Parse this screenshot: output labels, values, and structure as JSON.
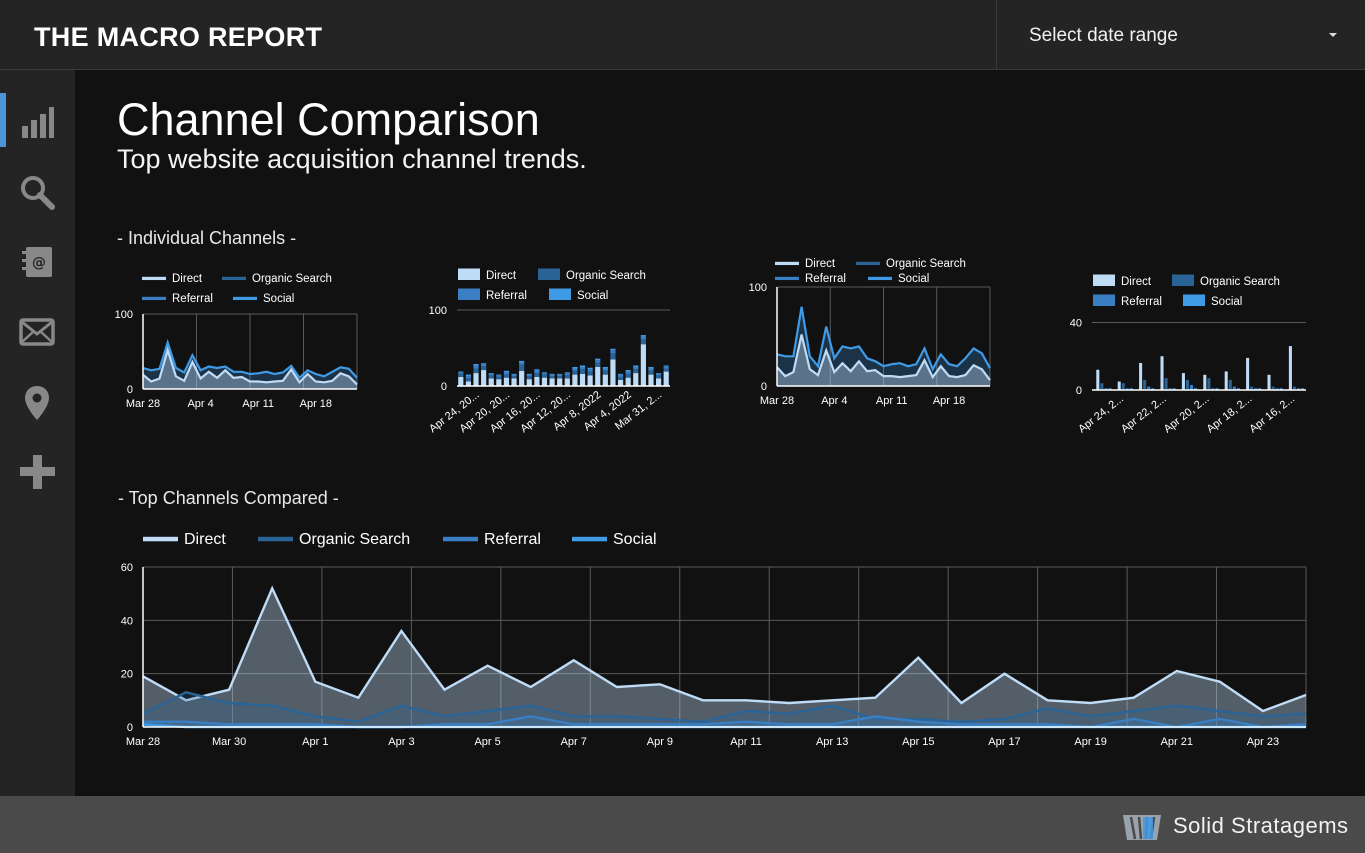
{
  "app": {
    "brand": "THE MACRO REPORT"
  },
  "date_selector": {
    "label": "Select date range"
  },
  "sidebar": {
    "items": [
      {
        "icon": "bar-chart-icon",
        "active": true
      },
      {
        "icon": "search-icon",
        "active": false
      },
      {
        "icon": "contact-book-icon",
        "active": false
      },
      {
        "icon": "mail-icon",
        "active": false
      },
      {
        "icon": "location-pin-icon",
        "active": false
      },
      {
        "icon": "plus-icon",
        "active": false
      }
    ]
  },
  "page": {
    "title": "Channel Comparison",
    "subtitle": "Top website acquisition channel trends.",
    "section_individual": "- Individual Channels -",
    "section_compared": "- Top Channels Compared -"
  },
  "footer": {
    "logo_text": "Solid Stratagems"
  },
  "colors": {
    "direct": "#bfdcf7",
    "organic": "#2a6496",
    "referral": "#3a7fc4",
    "social": "#3f9be6",
    "grid": "#5a5a5a",
    "axis": "#ffffff"
  },
  "chart_data": [
    {
      "id": "ind1",
      "type": "area",
      "legend": [
        "Direct",
        "Organic Search",
        "Referral",
        "Social"
      ],
      "x_ticks": [
        "Mar 28",
        "Apr 4",
        "Apr 11",
        "Apr 18"
      ],
      "y_ticks": [
        "0",
        "100"
      ],
      "ylim": [
        0,
        100
      ],
      "series": [
        {
          "name": "Social",
          "values": [
            28,
            25,
            27,
            62,
            28,
            22,
            45,
            25,
            30,
            28,
            30,
            23,
            23,
            20,
            21,
            23,
            20,
            22,
            31,
            15,
            25,
            20,
            17,
            23,
            29,
            27,
            15
          ]
        },
        {
          "name": "Direct",
          "values": [
            19,
            10,
            14,
            52,
            17,
            11,
            36,
            14,
            23,
            15,
            25,
            15,
            16,
            10,
            10,
            9,
            10,
            11,
            26,
            9,
            20,
            10,
            9,
            11,
            21,
            17,
            6
          ]
        }
      ]
    },
    {
      "id": "ind2",
      "type": "bar",
      "stacked": true,
      "legend": [
        "Direct",
        "Organic Search",
        "Referral",
        "Social"
      ],
      "x_ticks": [
        "Apr 24, 20...",
        "Apr 20, 20...",
        "Apr 16, 20...",
        "Apr 12, 20...",
        "Apr 8, 2022",
        "Apr 4, 2022",
        "Mar 31, 2..."
      ],
      "y_ticks": [
        "0",
        "100"
      ],
      "ylim": [
        0,
        100
      ],
      "categories": [
        "Apr 24",
        "Apr 23",
        "Apr 22",
        "Apr 21",
        "Apr 20",
        "Apr 19",
        "Apr 18",
        "Apr 17",
        "Apr 16",
        "Apr 15",
        "Apr 14",
        "Apr 13",
        "Apr 12",
        "Apr 11",
        "Apr 10",
        "Apr 9",
        "Apr 8",
        "Apr 7",
        "Apr 6",
        "Apr 5",
        "Apr 4",
        "Apr 3",
        "Apr 2",
        "Apr 1",
        "Mar 31",
        "Mar 30",
        "Mar 29",
        "Mar 28"
      ],
      "series": [
        {
          "name": "Direct",
          "values": [
            12,
            6,
            17,
            21,
            10,
            9,
            11,
            10,
            20,
            9,
            12,
            11,
            10,
            10,
            10,
            15,
            16,
            14,
            25,
            15,
            35,
            8,
            11,
            17,
            55,
            15,
            10,
            19
          ]
        },
        {
          "name": "Organic Search",
          "values": [
            4,
            4,
            6,
            5,
            4,
            3,
            4,
            3,
            8,
            4,
            5,
            4,
            3,
            3,
            4,
            5,
            6,
            5,
            6,
            5,
            8,
            4,
            5,
            5,
            6,
            5,
            4,
            4
          ]
        },
        {
          "name": "Referral",
          "values": [
            2,
            3,
            4,
            3,
            2,
            2,
            3,
            2,
            3,
            2,
            3,
            2,
            2,
            2,
            3,
            3,
            3,
            3,
            3,
            3,
            4,
            3,
            3,
            3,
            4,
            3,
            2,
            3
          ]
        },
        {
          "name": "Social",
          "values": [
            1,
            2,
            2,
            1,
            1,
            1,
            2,
            1,
            2,
            1,
            2,
            1,
            1,
            1,
            1,
            2,
            2,
            2,
            2,
            2,
            2,
            1,
            2,
            2,
            2,
            2,
            1,
            1
          ]
        }
      ]
    },
    {
      "id": "ind3",
      "type": "area",
      "legend": [
        "Direct",
        "Organic Search",
        "Referral",
        "Social"
      ],
      "x_ticks": [
        "Mar 28",
        "Apr 4",
        "Apr 11",
        "Apr 18"
      ],
      "y_ticks": [
        "0",
        "100"
      ],
      "ylim": [
        0,
        100
      ],
      "series": [
        {
          "name": "Social",
          "values": [
            32,
            30,
            30,
            80,
            30,
            20,
            60,
            28,
            40,
            38,
            40,
            28,
            25,
            20,
            22,
            23,
            20,
            22,
            38,
            17,
            32,
            22,
            20,
            28,
            38,
            33,
            18
          ]
        },
        {
          "name": "Direct",
          "values": [
            19,
            10,
            14,
            52,
            17,
            11,
            36,
            14,
            23,
            15,
            25,
            15,
            16,
            10,
            10,
            9,
            10,
            11,
            26,
            9,
            20,
            10,
            9,
            11,
            21,
            17,
            6
          ]
        }
      ]
    },
    {
      "id": "ind4",
      "type": "bar",
      "stacked": false,
      "legend": [
        "Direct",
        "Organic Search",
        "Referral",
        "Social"
      ],
      "x_ticks": [
        "Apr 24, 2...",
        "Apr 22, 2...",
        "Apr 20, 2...",
        "Apr 18, 2...",
        "Apr 16, 2..."
      ],
      "y_ticks": [
        "0",
        "40"
      ],
      "ylim": [
        0,
        45
      ],
      "categories": [
        "Apr 24",
        "Apr 23",
        "Apr 22",
        "Apr 21",
        "Apr 20",
        "Apr 19",
        "Apr 18",
        "Apr 17",
        "Apr 16",
        "Apr 15"
      ],
      "series": [
        {
          "name": "Direct",
          "values": [
            12,
            5,
            16,
            20,
            10,
            9,
            11,
            19,
            9,
            26
          ]
        },
        {
          "name": "Organic Search",
          "values": [
            4,
            4,
            6,
            7,
            6,
            7,
            6,
            2,
            2,
            2
          ]
        },
        {
          "name": "Referral",
          "values": [
            1,
            1,
            2,
            1,
            3,
            1,
            2,
            1,
            1,
            1
          ]
        },
        {
          "name": "Social",
          "values": [
            1,
            1,
            1,
            1,
            1,
            1,
            1,
            1,
            1,
            1
          ]
        }
      ]
    },
    {
      "id": "compare",
      "type": "area",
      "legend": [
        "Direct",
        "Organic Search",
        "Referral",
        "Social"
      ],
      "x_ticks": [
        "Mar 28",
        "Mar 30",
        "Apr 1",
        "Apr 3",
        "Apr 5",
        "Apr 7",
        "Apr 9",
        "Apr 11",
        "Apr 13",
        "Apr 15",
        "Apr 17",
        "Apr 19",
        "Apr 21",
        "Apr 23"
      ],
      "y_ticks": [
        "0",
        "20",
        "40",
        "60"
      ],
      "ylim": [
        0,
        60
      ],
      "series": [
        {
          "name": "Direct",
          "values": [
            19,
            10,
            14,
            52,
            17,
            11,
            36,
            14,
            23,
            15,
            25,
            15,
            16,
            10,
            10,
            9,
            10,
            11,
            26,
            9,
            20,
            10,
            9,
            11,
            21,
            17,
            6,
            12
          ]
        },
        {
          "name": "Organic Search",
          "values": [
            5,
            13,
            9,
            8,
            4,
            2,
            8,
            4,
            6,
            8,
            4,
            4,
            3,
            2,
            6,
            5,
            8,
            3,
            3,
            2,
            3,
            7,
            4,
            6,
            8,
            6,
            4,
            5
          ]
        },
        {
          "name": "Referral",
          "values": [
            2,
            2,
            1,
            1,
            1,
            0,
            0,
            1,
            1,
            4,
            1,
            1,
            1,
            1,
            2,
            1,
            1,
            4,
            2,
            1,
            1,
            1,
            0,
            3,
            0,
            3,
            0,
            1
          ]
        },
        {
          "name": "Social",
          "values": [
            1,
            0,
            0,
            0,
            0,
            0,
            0,
            0,
            0,
            0,
            0,
            0,
            0,
            0,
            0,
            0,
            0,
            0,
            0,
            0,
            0,
            0,
            0,
            0,
            0,
            0,
            0,
            0
          ]
        }
      ]
    }
  ]
}
